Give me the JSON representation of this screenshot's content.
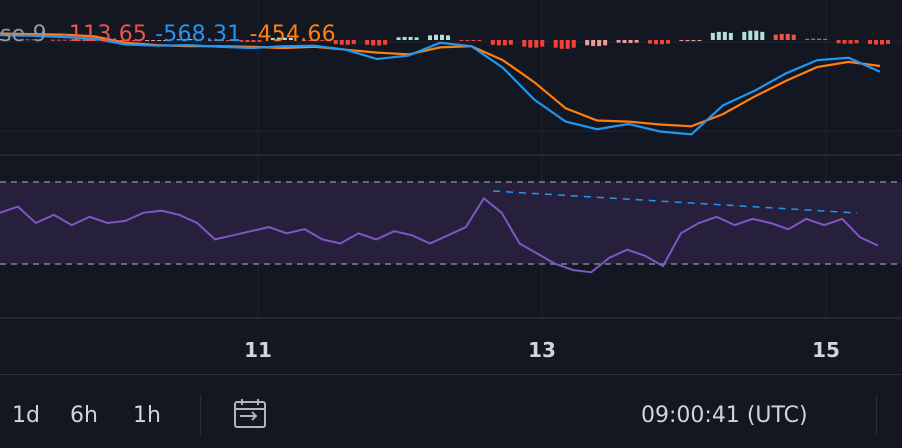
{
  "macd_legend": {
    "label": "se 9",
    "histogram": "-113.65",
    "macd": "-568.31",
    "signal": "-454.66"
  },
  "colors": {
    "background": "#131722",
    "macd_line": "#2196f3",
    "signal_line": "#ff7f0e",
    "rsi_line": "#7e57c2",
    "hist_up_strong": "#b2dfdb",
    "hist_up_weak": "#ef5350",
    "hist_down_strong": "#ef9a9a",
    "hist_down_weak": "#f44336"
  },
  "chart_data": {
    "type": "line",
    "x_ticks": [
      "11",
      "13",
      "15"
    ],
    "macd": {
      "macd_line": [
        0.91,
        0.9,
        0.88,
        0.85,
        0.75,
        0.73,
        0.74,
        0.71,
        0.69,
        0.72,
        0.73,
        0.66,
        0.5,
        0.56,
        0.78,
        0.72,
        0.35,
        -0.2,
        -0.58,
        -0.71,
        -0.62,
        -0.75,
        -0.8,
        -0.3,
        -0.05,
        0.25,
        0.48,
        0.52,
        0.28
      ],
      "signal_line": [
        0.94,
        0.93,
        0.92,
        0.89,
        0.78,
        0.74,
        0.72,
        0.72,
        0.71,
        0.69,
        0.71,
        0.66,
        0.61,
        0.58,
        0.7,
        0.72,
        0.48,
        0.1,
        -0.35,
        -0.56,
        -0.58,
        -0.63,
        -0.66,
        -0.45,
        -0.15,
        0.12,
        0.36,
        0.45,
        0.38
      ],
      "histogram": [
        0.05,
        0.04,
        0.02,
        0.03,
        -0.08,
        -0.02,
        0.05,
        -0.06,
        -0.12,
        0.14,
        -0.06,
        -0.28,
        -0.32,
        0.18,
        0.31,
        -0.05,
        -0.32,
        -0.45,
        -0.52,
        -0.36,
        -0.18,
        -0.25,
        -0.07,
        0.48,
        0.55,
        0.36,
        0.08,
        -0.22,
        -0.27
      ]
    },
    "rsi": {
      "values": [
        55,
        58,
        50,
        54,
        49,
        53,
        50,
        51,
        55,
        56,
        54,
        50,
        42,
        44,
        46,
        48,
        45,
        47,
        42,
        40,
        45,
        42,
        46,
        44,
        40,
        44,
        48,
        62,
        55,
        40,
        35,
        30,
        27,
        26,
        33,
        37,
        34,
        29,
        45,
        50,
        53,
        49,
        52,
        50,
        47,
        52,
        49,
        52,
        43,
        39
      ],
      "upper_band": 70,
      "lower_band": 30,
      "range": [
        0,
        100
      ]
    }
  },
  "toolbar": {
    "timeframes": [
      "1d",
      "6h",
      "1h"
    ],
    "time": "09:00:41",
    "timezone": "(UTC)"
  }
}
